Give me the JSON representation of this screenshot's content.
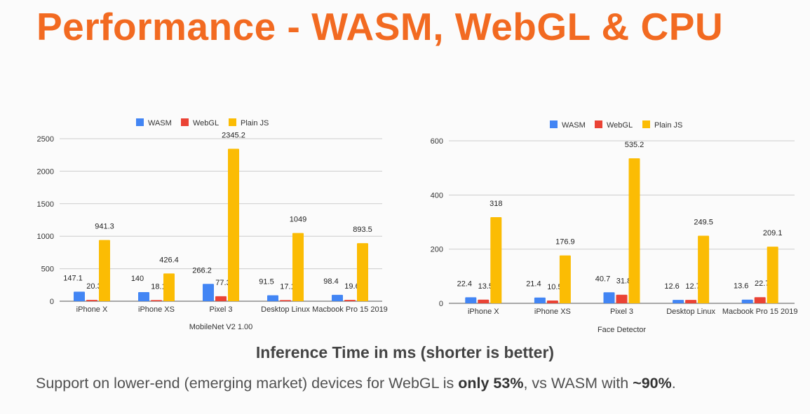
{
  "title": "Performance - WASM, WebGL & CPU",
  "caption": "Inference Time in ms (shorter is better)",
  "note": {
    "part1": "Support on lower-end (emerging market) devices for WebGL is ",
    "bold1": "only 53%",
    "part2": ", vs WASM with ",
    "bold2": "~90%",
    "part3": "."
  },
  "colors": {
    "WASM": "#4285f4",
    "WebGL": "#ea4335",
    "Plain JS": "#fbbc04",
    "title": "#f26a21"
  },
  "chart_data": [
    {
      "type": "bar",
      "xlabel": "MobileNet V2 1.00",
      "ylabel": "",
      "ylim": [
        0,
        2500
      ],
      "yticks": [
        0,
        500,
        1000,
        1500,
        2000,
        2500
      ],
      "grid": true,
      "legend": "top-center",
      "categories": [
        "iPhone X",
        "iPhone XS",
        "Pixel 3",
        "Desktop Linux",
        "Macbook Pro 15 2019"
      ],
      "series": [
        {
          "name": "WASM",
          "values": [
            147.1,
            140,
            266.2,
            91.5,
            98.4
          ]
        },
        {
          "name": "WebGL",
          "values": [
            20.3,
            18.1,
            77.3,
            17.1,
            19.6
          ]
        },
        {
          "name": "Plain JS",
          "values": [
            941.3,
            426.4,
            2345.2,
            1049,
            893.5
          ]
        }
      ]
    },
    {
      "type": "bar",
      "xlabel": "Face Detector",
      "ylabel": "",
      "ylim": [
        0,
        600
      ],
      "yticks": [
        0,
        200,
        400,
        600
      ],
      "grid": true,
      "legend": "top-center",
      "categories": [
        "iPhone X",
        "iPhone XS",
        "Pixel 3",
        "Desktop Linux",
        "Macbook Pro 15 2019"
      ],
      "series": [
        {
          "name": "WASM",
          "values": [
            22.4,
            21.4,
            40.7,
            12.6,
            13.6
          ]
        },
        {
          "name": "WebGL",
          "values": [
            13.5,
            10.5,
            31.8,
            12.7,
            22.7
          ]
        },
        {
          "name": "Plain JS",
          "values": [
            318,
            176.9,
            535.2,
            249.5,
            209.1
          ]
        }
      ]
    }
  ]
}
